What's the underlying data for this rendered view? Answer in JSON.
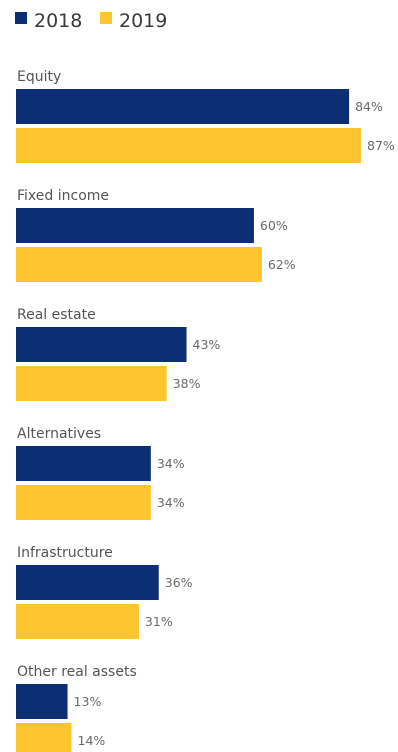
{
  "colors": {
    "2018": "#0b2e74",
    "2019": "#fdc530"
  },
  "chart_data": {
    "type": "bar",
    "orientation": "horizontal",
    "legend_position": "top-left",
    "grid": false,
    "xlim": [
      0,
      100
    ],
    "categories": [
      "Equity",
      "Fixed income",
      "Real estate",
      "Alternatives",
      "Infrastructure",
      "Other real assets"
    ],
    "series": [
      {
        "name": "2018",
        "values": [
          84,
          60,
          43,
          34,
          36,
          13
        ]
      },
      {
        "name": "2019",
        "values": [
          87,
          62,
          38,
          34,
          31,
          14
        ]
      }
    ],
    "value_labels": {
      "2018": [
        "84%",
        "60%",
        "43%",
        "34%",
        "36%",
        "13%"
      ],
      "2019": [
        "87%",
        "62%",
        "38%",
        "34%",
        "31%",
        "14%"
      ]
    }
  }
}
